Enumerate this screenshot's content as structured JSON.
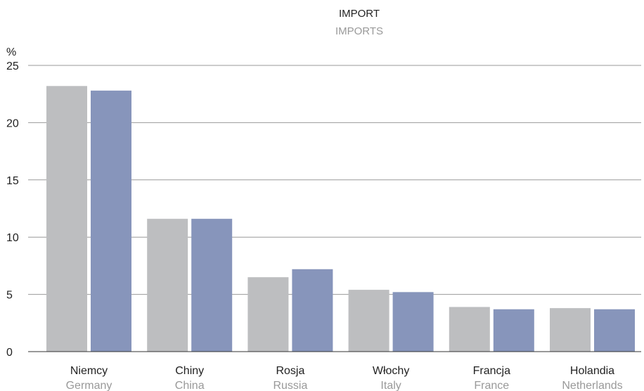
{
  "chart_data": {
    "type": "bar",
    "title": "IMPORT",
    "subtitle": "IMPORTS",
    "ylabel": "%",
    "ylim": [
      0,
      25
    ],
    "yticks": [
      0,
      5,
      10,
      15,
      20,
      25
    ],
    "grid": true,
    "categories": [
      "Niemcy",
      "Chiny",
      "Rosja",
      "Włochy",
      "Francja",
      "Holandia"
    ],
    "categories_en": [
      "Germany",
      "China",
      "Russia",
      "Italy",
      "France",
      "Netherlands"
    ],
    "series": [
      {
        "values": [
          23.2,
          11.6,
          6.5,
          5.4,
          3.9,
          3.8
        ],
        "color": "#bdbec0"
      },
      {
        "values": [
          22.8,
          11.6,
          7.2,
          5.2,
          3.7,
          3.7
        ],
        "color": "#8795bb"
      }
    ],
    "colors": {
      "title_pl": "#222222",
      "title_en": "#999999",
      "grid": "#999999",
      "axis": "#333333"
    }
  }
}
